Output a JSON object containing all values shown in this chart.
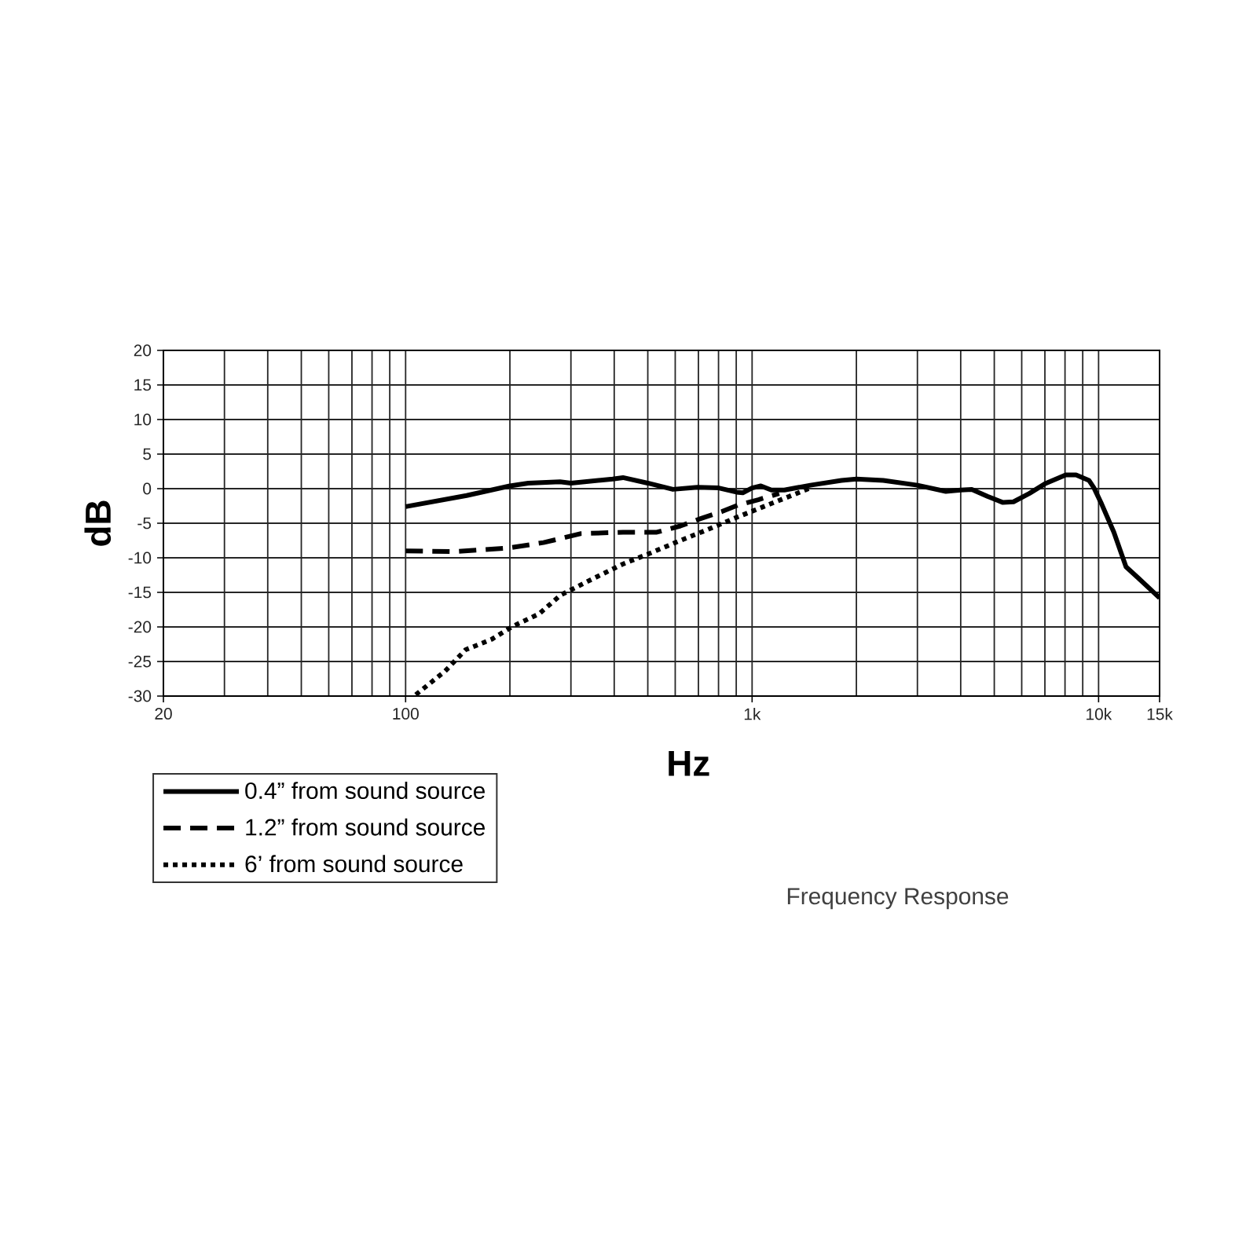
{
  "chart_data": {
    "type": "line",
    "xlabel": "Hz",
    "ylabel": "dB",
    "annotations": [
      "Frequency Response"
    ],
    "log": "x",
    "xlim": [
      20,
      15000
    ],
    "ylim": [
      -30,
      20
    ],
    "xticks": [
      20,
      100,
      {
        "value": 1000,
        "label": "1k"
      },
      {
        "value": 10000,
        "label": "10k"
      },
      {
        "value": 15000,
        "label": "15k"
      }
    ],
    "yticks": [
      -30,
      -25,
      -20,
      -15,
      -10,
      -5,
      0,
      5,
      10,
      15,
      20
    ],
    "grid": true,
    "legend": "bottom left",
    "series": [
      {
        "name": "0.4” from sound source",
        "color": "#000000",
        "line_style": "solid",
        "x": [
          100,
          150,
          200,
          226,
          279,
          300,
          396,
          424,
          500,
          591,
          695,
          801,
          901,
          940,
          1000,
          1060,
          1137,
          1239,
          1473,
          1812,
          2000,
          2391,
          3000,
          3624,
          4000,
          4306,
          4776,
          5297,
          5680,
          6310,
          7000,
          8040,
          8610,
          9380,
          9700,
          10200,
          11070,
          12000,
          13000,
          15000
        ],
        "values": [
          -2.6,
          -1.0,
          0.4,
          0.8,
          1.0,
          0.8,
          1.4,
          1.6,
          0.8,
          -0.1,
          0.2,
          0.1,
          -0.5,
          -0.6,
          0.1,
          0.4,
          -0.2,
          -0.2,
          0.5,
          1.2,
          1.4,
          1.2,
          0.5,
          -0.4,
          -0.2,
          -0.1,
          -1.1,
          -2.0,
          -1.9,
          -0.7,
          0.7,
          2.0,
          2.0,
          1.2,
          0.1,
          -2.2,
          -6.3,
          -11.3,
          -12.9,
          -15.8
        ]
      },
      {
        "name": "1.2” from sound source",
        "color": "#000000",
        "line_style": "dashed",
        "x": [
          100,
          139,
          197,
          250,
          321,
          424,
          531,
          621,
          713,
          819,
          908,
          1042,
          1197
        ],
        "values": [
          -9.0,
          -9.1,
          -8.6,
          -7.8,
          -6.5,
          -6.3,
          -6.3,
          -5.4,
          -4.3,
          -3.3,
          -2.4,
          -1.6,
          -0.7
        ]
      },
      {
        "name": "6’ from sound source",
        "color": "#000000",
        "line_style": "dotted",
        "x": [
          107,
          130,
          149,
          177,
          204,
          243,
          280,
          345,
          424,
          504,
          621,
          738,
          908,
          1079,
          1283,
          1473
        ],
        "values": [
          -29.8,
          -26.4,
          -23.3,
          -21.8,
          -19.9,
          -18.1,
          -15.4,
          -13.1,
          -10.9,
          -9.4,
          -7.5,
          -6.0,
          -4.1,
          -2.6,
          -1.1,
          0.1
        ]
      }
    ]
  }
}
